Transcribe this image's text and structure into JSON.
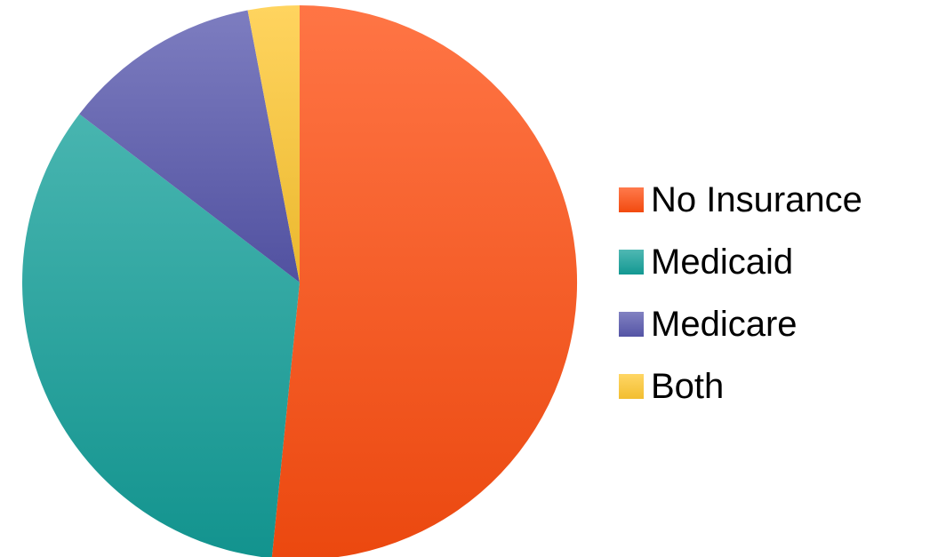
{
  "chart_data": {
    "type": "pie",
    "title": "",
    "series": [
      {
        "name": "No Insurance",
        "value": 51.6,
        "color": "#FF4E10"
      },
      {
        "name": "Medicaid",
        "value": 33.8,
        "color": "#14A09A"
      },
      {
        "name": "Medicare",
        "value": 11.6,
        "color": "#5858AE"
      },
      {
        "name": "Both",
        "value": 3.0,
        "color": "#FFC832"
      }
    ],
    "legend_position": "right"
  }
}
